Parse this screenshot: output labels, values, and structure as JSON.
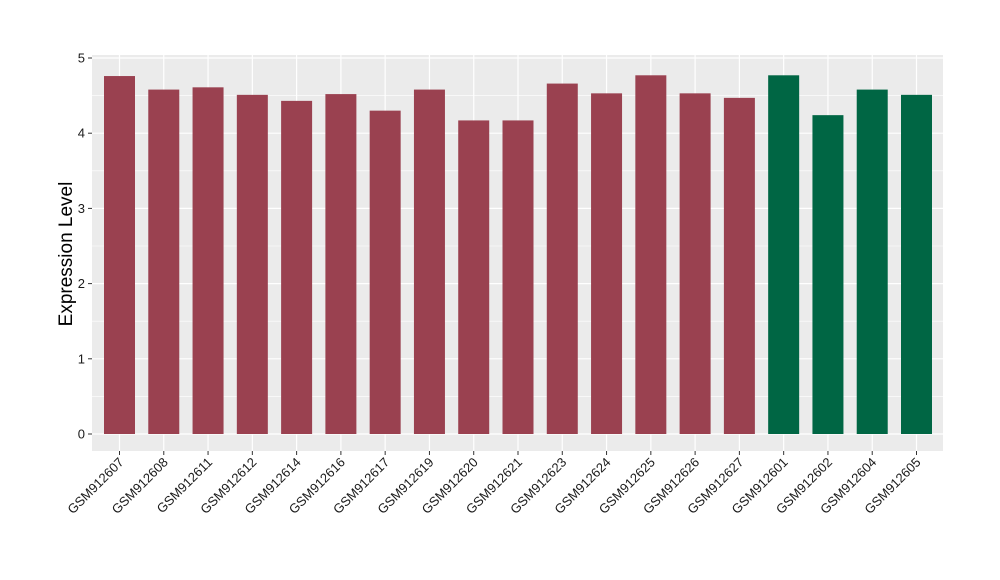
{
  "chart_data": {
    "type": "bar",
    "title": "",
    "xlabel": "",
    "ylabel": "Expression Level",
    "ylim": [
      0,
      5
    ],
    "yticks": [
      0,
      1,
      2,
      3,
      4,
      5
    ],
    "grid": true,
    "legend": "none",
    "colors": {
      "group_a": "#9a4150",
      "group_b": "#006644",
      "panel": "#ebebeb",
      "grid": "#ffffff"
    },
    "categories": [
      "GSM912607",
      "GSM912608",
      "GSM912611",
      "GSM912612",
      "GSM912614",
      "GSM912616",
      "GSM912617",
      "GSM912619",
      "GSM912620",
      "GSM912621",
      "GSM912623",
      "GSM912624",
      "GSM912625",
      "GSM912626",
      "GSM912627",
      "GSM912601",
      "GSM912602",
      "GSM912604",
      "GSM912605"
    ],
    "values": [
      4.76,
      4.58,
      4.61,
      4.51,
      4.43,
      4.52,
      4.3,
      4.58,
      4.17,
      4.17,
      4.66,
      4.53,
      4.77,
      4.53,
      4.47,
      4.77,
      4.24,
      4.58,
      4.51
    ],
    "groups": [
      "a",
      "a",
      "a",
      "a",
      "a",
      "a",
      "a",
      "a",
      "a",
      "a",
      "a",
      "a",
      "a",
      "a",
      "a",
      "b",
      "b",
      "b",
      "b"
    ]
  }
}
